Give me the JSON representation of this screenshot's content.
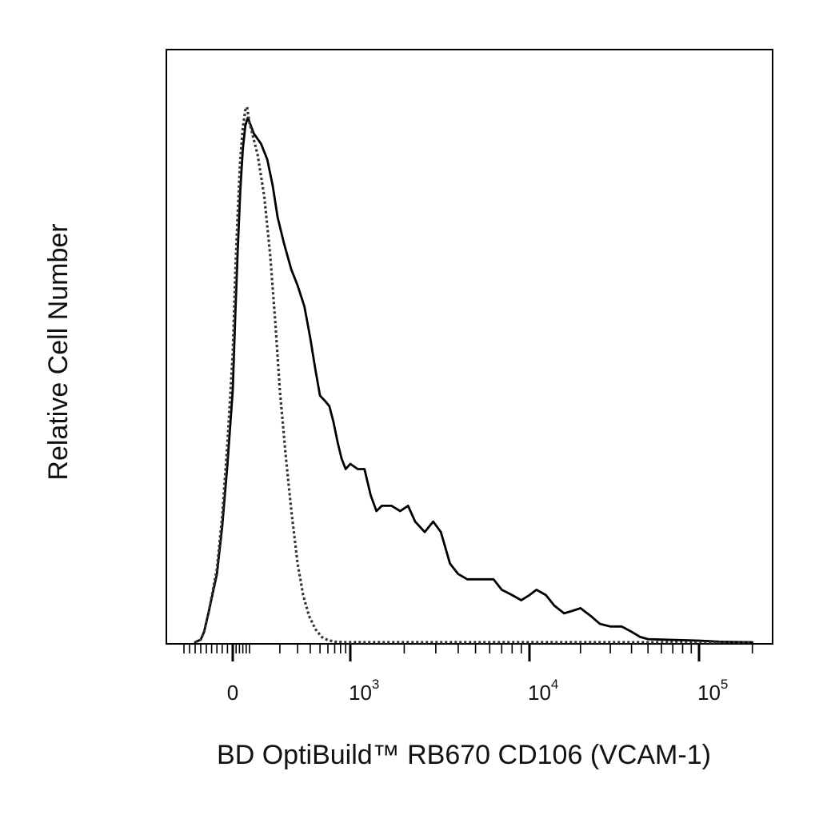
{
  "chart_data": {
    "type": "line",
    "title": "",
    "xlabel": "BD OptiBuild™ RB670 CD106 (VCAM-1)",
    "ylabel": "Relative Cell Number",
    "x_scale": "biexponential (logicle)",
    "x_tick_labels": [
      {
        "value": 0,
        "base": "0",
        "exp": ""
      },
      {
        "value": 1000,
        "base": "10",
        "exp": "3"
      },
      {
        "value": 10000,
        "base": "10",
        "exp": "4"
      },
      {
        "value": 100000,
        "base": "10",
        "exp": "5"
      }
    ],
    "y_range": [
      0,
      100
    ],
    "grid": false,
    "legend": "none",
    "series": [
      {
        "style": "solid",
        "color": "#000000",
        "points": [
          [
            -200,
            0
          ],
          [
            -150,
            0.5
          ],
          [
            -120,
            2
          ],
          [
            -90,
            6
          ],
          [
            -60,
            13
          ],
          [
            -40,
            22
          ],
          [
            -20,
            34
          ],
          [
            0,
            48
          ],
          [
            15,
            62
          ],
          [
            30,
            75
          ],
          [
            45,
            86
          ],
          [
            60,
            94
          ],
          [
            75,
            98.5
          ],
          [
            90,
            100
          ],
          [
            110,
            97
          ],
          [
            130,
            95
          ],
          [
            150,
            92
          ],
          [
            170,
            87
          ],
          [
            190,
            81
          ],
          [
            220,
            76
          ],
          [
            260,
            71
          ],
          [
            300,
            68
          ],
          [
            350,
            64
          ],
          [
            400,
            58
          ],
          [
            450,
            52
          ],
          [
            500,
            47
          ],
          [
            560,
            46
          ],
          [
            620,
            45
          ],
          [
            680,
            42
          ],
          [
            750,
            38
          ],
          [
            820,
            35
          ],
          [
            900,
            33
          ],
          [
            1000,
            34
          ],
          [
            1100,
            33
          ],
          [
            1200,
            33
          ],
          [
            1300,
            28
          ],
          [
            1400,
            25
          ],
          [
            1500,
            26
          ],
          [
            1700,
            26
          ],
          [
            1900,
            25
          ],
          [
            2100,
            26
          ],
          [
            2300,
            23
          ],
          [
            2600,
            21
          ],
          [
            2900,
            23
          ],
          [
            3200,
            21
          ],
          [
            3600,
            15
          ],
          [
            4000,
            13
          ],
          [
            4500,
            12
          ],
          [
            5000,
            12
          ],
          [
            5600,
            12
          ],
          [
            6300,
            12
          ],
          [
            7000,
            10
          ],
          [
            8000,
            9
          ],
          [
            9000,
            8
          ],
          [
            10000,
            9
          ],
          [
            11000,
            10
          ],
          [
            12500,
            9
          ],
          [
            14000,
            7
          ],
          [
            16000,
            5.5
          ],
          [
            18000,
            6
          ],
          [
            20000,
            6.5
          ],
          [
            23000,
            5
          ],
          [
            26000,
            3.5
          ],
          [
            30000,
            3
          ],
          [
            35000,
            3
          ],
          [
            40000,
            2
          ],
          [
            45000,
            1
          ],
          [
            50000,
            0.6
          ],
          [
            60000,
            0.5
          ],
          [
            80000,
            0.4
          ],
          [
            100000,
            0.3
          ],
          [
            130000,
            0.1
          ],
          [
            200000,
            0
          ]
        ]
      },
      {
        "style": "dotted",
        "color": "#333333",
        "points": [
          [
            -200,
            0
          ],
          [
            -150,
            0.5
          ],
          [
            -120,
            2
          ],
          [
            -90,
            6
          ],
          [
            -60,
            14
          ],
          [
            -40,
            24
          ],
          [
            -20,
            38
          ],
          [
            0,
            55
          ],
          [
            15,
            70
          ],
          [
            30,
            82
          ],
          [
            45,
            92
          ],
          [
            60,
            98
          ],
          [
            75,
            101.5
          ],
          [
            85,
            102
          ],
          [
            100,
            99
          ],
          [
            120,
            93
          ],
          [
            140,
            85
          ],
          [
            160,
            74
          ],
          [
            180,
            61
          ],
          [
            200,
            48
          ],
          [
            230,
            35
          ],
          [
            260,
            25
          ],
          [
            300,
            15
          ],
          [
            340,
            9
          ],
          [
            390,
            5
          ],
          [
            450,
            2.5
          ],
          [
            520,
            1
          ],
          [
            600,
            0.4
          ],
          [
            700,
            0.1
          ],
          [
            900,
            0
          ],
          [
            200000,
            0
          ]
        ]
      }
    ]
  }
}
